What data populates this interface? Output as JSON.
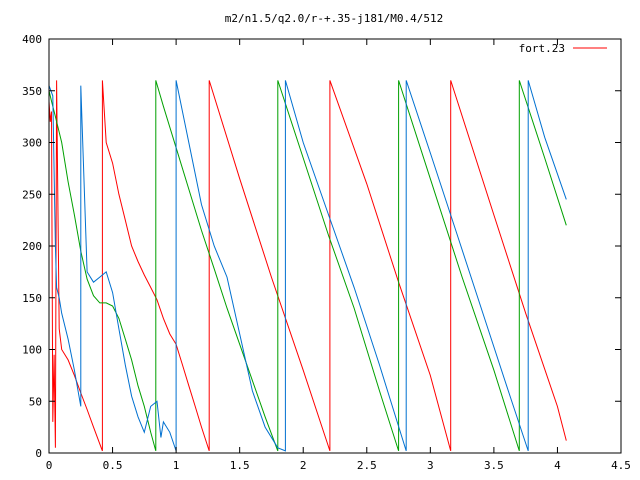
{
  "chart_data": {
    "type": "line",
    "title": "m2/n1.5/q2.0/r-+.35-j181/M0.4/512",
    "xlabel": "",
    "ylabel": "",
    "xlim": [
      0,
      4.5
    ],
    "ylim": [
      0,
      400
    ],
    "xticks": [
      0,
      0.5,
      1,
      1.5,
      2,
      2.5,
      3,
      3.5,
      4,
      4.5
    ],
    "xtick_labels": [
      "0",
      "0.5",
      "1",
      "1.5",
      "2",
      "2.5",
      "3",
      "3.5",
      "4",
      "4.5"
    ],
    "yticks": [
      0,
      50,
      100,
      150,
      200,
      250,
      300,
      350,
      400
    ],
    "ytick_labels": [
      "0",
      "50",
      "100",
      "150",
      "200",
      "250",
      "300",
      "350",
      "400"
    ],
    "grid": false,
    "legend": {
      "position": "top-right",
      "entries": [
        "fort.23"
      ]
    },
    "series": [
      {
        "name": "fort.23",
        "color": "#ff0000",
        "x": [
          0.0,
          0.01,
          0.02,
          0.03,
          0.04,
          0.05,
          0.06,
          0.08,
          0.1,
          0.15,
          0.2,
          0.25,
          0.3,
          0.35,
          0.42,
          0.42,
          0.45,
          0.5,
          0.55,
          0.6,
          0.65,
          0.7,
          0.75,
          0.8,
          0.85,
          0.9,
          0.95,
          1.0,
          1.05,
          1.1,
          1.15,
          1.2,
          1.26,
          1.26,
          1.5,
          1.75,
          2.0,
          2.21,
          2.21,
          2.5,
          2.75,
          3.0,
          3.16,
          3.16,
          3.5,
          3.75,
          4.0,
          4.07
        ],
        "y": [
          340,
          320,
          330,
          30,
          95,
          5,
          360,
          120,
          100,
          90,
          75,
          58,
          42,
          25,
          2,
          360,
          300,
          280,
          250,
          225,
          200,
          185,
          172,
          160,
          148,
          130,
          115,
          105,
          85,
          65,
          45,
          25,
          2,
          360,
          265,
          170,
          80,
          2,
          360,
          260,
          165,
          75,
          2,
          360,
          230,
          135,
          45,
          12
        ]
      },
      {
        "name": "",
        "color": "#00a000",
        "x": [
          0.0,
          0.02,
          0.05,
          0.1,
          0.15,
          0.2,
          0.25,
          0.3,
          0.35,
          0.4,
          0.45,
          0.5,
          0.55,
          0.6,
          0.65,
          0.7,
          0.75,
          0.8,
          0.84,
          0.84,
          0.9,
          1.0,
          1.1,
          1.2,
          1.3,
          1.4,
          1.5,
          1.6,
          1.7,
          1.8,
          1.8,
          2.0,
          2.2,
          2.4,
          2.6,
          2.75,
          2.75,
          3.0,
          3.25,
          3.5,
          3.7,
          3.7,
          3.9,
          4.07
        ],
        "y": [
          350,
          340,
          325,
          300,
          262,
          230,
          195,
          168,
          152,
          145,
          145,
          142,
          130,
          110,
          90,
          65,
          45,
          20,
          2,
          360,
          335,
          295,
          255,
          215,
          178,
          140,
          105,
          70,
          35,
          2,
          360,
          285,
          210,
          140,
          60,
          2,
          360,
          265,
          170,
          80,
          2,
          360,
          285,
          220
        ]
      },
      {
        "name": "",
        "color": "#0070d0",
        "x": [
          0.0,
          0.03,
          0.05,
          0.06,
          0.08,
          0.1,
          0.15,
          0.2,
          0.25,
          0.25,
          0.3,
          0.35,
          0.4,
          0.45,
          0.5,
          0.55,
          0.6,
          0.65,
          0.7,
          0.75,
          0.8,
          0.85,
          0.88,
          0.9,
          0.95,
          1.0,
          1.0,
          1.1,
          1.2,
          1.3,
          1.4,
          1.5,
          1.6,
          1.7,
          1.8,
          1.86,
          1.86,
          2.0,
          2.2,
          2.4,
          2.6,
          2.81,
          2.81,
          3.0,
          3.2,
          3.4,
          3.6,
          3.77,
          3.77,
          3.9,
          4.07
        ],
        "y": [
          355,
          345,
          200,
          160,
          150,
          135,
          110,
          80,
          45,
          355,
          175,
          165,
          170,
          175,
          155,
          120,
          85,
          55,
          35,
          20,
          45,
          50,
          15,
          30,
          20,
          2,
          360,
          300,
          240,
          200,
          170,
          115,
          60,
          25,
          5,
          2,
          360,
          300,
          230,
          160,
          85,
          2,
          360,
          290,
          215,
          140,
          65,
          2,
          360,
          305,
          245
        ]
      }
    ]
  }
}
